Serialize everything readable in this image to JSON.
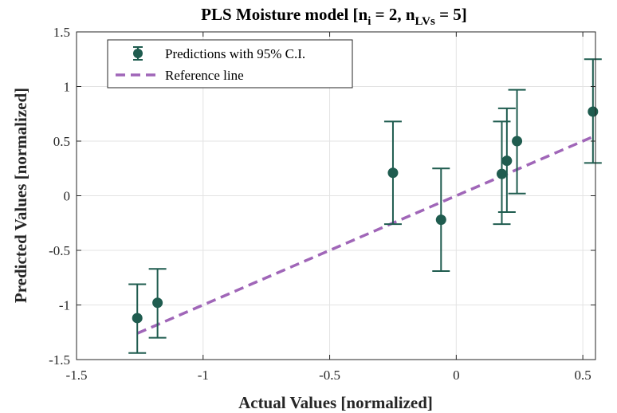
{
  "chart_data": {
    "type": "scatter",
    "title": {
      "prefix": "PLS Moisture model [n",
      "sub1": "i",
      "middle": " = 2, n",
      "sub2": "LVs",
      "suffix": " = 5]"
    },
    "xlabel": "Actual Values [normalized]",
    "ylabel": "Predicted Values [normalized]",
    "xlim": [
      -1.5,
      0.55
    ],
    "ylim": [
      -1.5,
      1.5
    ],
    "xticks": [
      -1.5,
      -1,
      -0.5,
      0,
      0.5
    ],
    "xtick_labels": [
      "-1.5",
      "-1",
      "-0.5",
      "0",
      "0.5"
    ],
    "yticks": [
      -1.5,
      -1,
      -0.5,
      0,
      0.5,
      1,
      1.5
    ],
    "ytick_labels": [
      "-1.5",
      "-1",
      "-0.5",
      "0",
      "0.5",
      "1",
      "1.5"
    ],
    "grid": true,
    "legend_position": "top-left",
    "series": [
      {
        "name": "Predictions with 95% C.I.",
        "kind": "errorbar",
        "color": "#1f5c4f",
        "points": [
          {
            "x": -1.26,
            "y": -1.12,
            "lower": -1.44,
            "upper": -0.81
          },
          {
            "x": -1.18,
            "y": -0.98,
            "lower": -1.3,
            "upper": -0.67
          },
          {
            "x": -0.25,
            "y": 0.21,
            "lower": -0.26,
            "upper": 0.68
          },
          {
            "x": -0.06,
            "y": -0.22,
            "lower": -0.69,
            "upper": 0.25
          },
          {
            "x": 0.18,
            "y": 0.2,
            "lower": -0.26,
            "upper": 0.68
          },
          {
            "x": 0.2,
            "y": 0.32,
            "lower": -0.15,
            "upper": 0.8
          },
          {
            "x": 0.24,
            "y": 0.5,
            "lower": 0.02,
            "upper": 0.97
          },
          {
            "x": 0.54,
            "y": 0.77,
            "lower": 0.3,
            "upper": 1.25
          }
        ]
      },
      {
        "name": "Reference line",
        "kind": "line",
        "style": "dashed",
        "color": "#a066b8",
        "x": [
          -1.26,
          0.54
        ],
        "y": [
          -1.26,
          0.54
        ]
      }
    ]
  }
}
